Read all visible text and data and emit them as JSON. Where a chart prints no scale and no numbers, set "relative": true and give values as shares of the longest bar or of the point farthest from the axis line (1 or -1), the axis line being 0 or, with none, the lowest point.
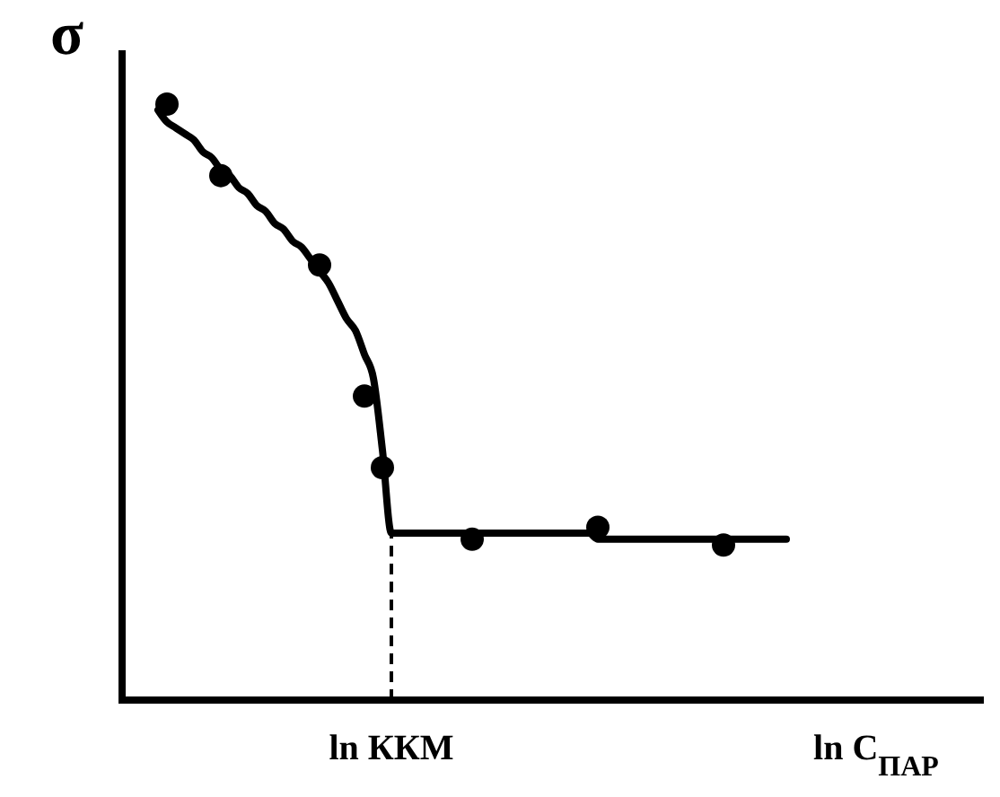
{
  "chart_data": {
    "type": "scatter",
    "relative": true,
    "ylabel": "σ",
    "grid": false,
    "categories": [
      null,
      null,
      null,
      null,
      null,
      null,
      null,
      null,
      null,
      null,
      null,
      null,
      null,
      null,
      null,
      null,
      null,
      null,
      null,
      null,
      null,
      null,
      null,
      null,
      null,
      null,
      null,
      null,
      null,
      null,
      "ln ККМ",
      null,
      null,
      null,
      null,
      null,
      null,
      null,
      null,
      null,
      null,
      null,
      null,
      null,
      null,
      null,
      null,
      null,
      null,
      null,
      null,
      null,
      null,
      null,
      null,
      null,
      null,
      null,
      null,
      null,
      null,
      null,
      null,
      null,
      null,
      null,
      null,
      null,
      null,
      null,
      null,
      null,
      null,
      null,
      null,
      null,
      null,
      null,
      null,
      null,
      null,
      null,
      null,
      null,
      "ln C$_{ПАР}$",
      null,
      null,
      null,
      null,
      null,
      null,
      null,
      null,
      null,
      null,
      null,
      null
    ],
    "series": [
      {
        "color": "#000000",
        "marker": "circle",
        "values": [
          null,
          null,
          null,
          null,
          null,
          1,
          null,
          null,
          null,
          null,
          null,
          0.88,
          null,
          null,
          null,
          null,
          null,
          null,
          null,
          null,
          null,
          null,
          0.73,
          null,
          null,
          null,
          null,
          0.51,
          null,
          0.39,
          null,
          null,
          null,
          null,
          null,
          null,
          null,
          null,
          null,
          0.27,
          null,
          null,
          null,
          null,
          null,
          null,
          null,
          null,
          null,
          null,
          null,
          null,
          null,
          0.29,
          null,
          null,
          null,
          null,
          null,
          null,
          null,
          null,
          null,
          null,
          null,
          null,
          null,
          0.26,
          null,
          null,
          null,
          null,
          null,
          null,
          null,
          null,
          null,
          null,
          null,
          null,
          null,
          null,
          null,
          null,
          null,
          null,
          null,
          null,
          null,
          null,
          null,
          null,
          null,
          null,
          null,
          null,
          null
        ]
      },
      {
        "type": "line",
        "color": "#000000",
        "line_style": "solid",
        "values": [
          null,
          null,
          null,
          null,
          0.99,
          0.97,
          0.96,
          0.95,
          0.94,
          0.92,
          0.91,
          0.89,
          0.88,
          0.86,
          0.85,
          0.83,
          0.82,
          0.8,
          0.79,
          0.77,
          0.76,
          0.74,
          0.72,
          0.7,
          0.67,
          0.64,
          0.62,
          0.58,
          0.54,
          0.42,
          0.28,
          0.28,
          0.28,
          0.28,
          0.28,
          0.28,
          0.28,
          0.28,
          0.28,
          0.28,
          0.28,
          0.28,
          0.28,
          0.28,
          0.28,
          0.28,
          0.28,
          0.28,
          0.28,
          0.28,
          0.28,
          0.28,
          0.28,
          0.27,
          0.27,
          0.27,
          0.27,
          0.27,
          0.27,
          0.27,
          0.27,
          0.27,
          0.27,
          0.27,
          0.27,
          0.27,
          0.27,
          0.27,
          0.27,
          0.27,
          0.27,
          0.27,
          0.27,
          0.27,
          0.27,
          null,
          null,
          null,
          null,
          null,
          null,
          null,
          null,
          null,
          null,
          null,
          null,
          null,
          null,
          null,
          null,
          null,
          null,
          null,
          null,
          null,
          null
        ]
      }
    ],
    "ref_lines": [
      {
        "axis": "x",
        "value": "ln ККМ",
        "line_style": "dashed",
        "color": "#000000"
      }
    ]
  }
}
